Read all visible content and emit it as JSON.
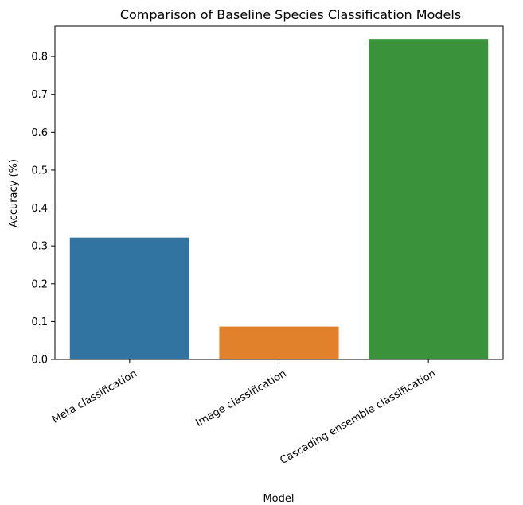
{
  "chart_data": {
    "type": "bar",
    "title": "Comparison of Baseline Species Classification Models",
    "xlabel": "Model",
    "ylabel": "Accuracy (%)",
    "categories": [
      "Meta classification",
      "Image classification",
      "Cascading ensemble classification"
    ],
    "values": [
      0.322,
      0.087,
      0.846
    ],
    "colors": [
      "#3274a1",
      "#e1812c",
      "#3a923a"
    ],
    "ylim": [
      0,
      0.88
    ],
    "yticks": [
      0.0,
      0.1,
      0.2,
      0.3,
      0.4,
      0.5,
      0.6,
      0.7,
      0.8
    ],
    "ytick_labels": [
      "0.0",
      "0.1",
      "0.2",
      "0.3",
      "0.4",
      "0.5",
      "0.6",
      "0.7",
      "0.8"
    ],
    "grid": false,
    "legend": "none"
  }
}
